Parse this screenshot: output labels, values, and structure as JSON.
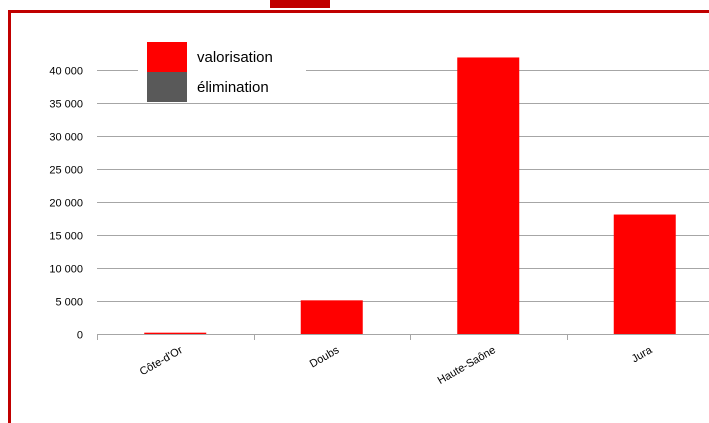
{
  "colors": {
    "frame": "#c00000",
    "title_remnant": "#c00000",
    "gridline": "#a6a6a6",
    "axis": "#a6a6a6"
  },
  "chart_data": {
    "type": "bar",
    "categories": [
      "Côte-d'Or",
      "Doubs",
      "Haute-Saône",
      "Jura"
    ],
    "series": [
      {
        "name": "valorisation",
        "color": "#ff0000",
        "values": [
          200,
          5100,
          41900,
          18100
        ]
      },
      {
        "name": "élimination",
        "color": "#595959",
        "values": [
          0,
          0,
          0,
          0
        ]
      }
    ],
    "title": "",
    "xlabel": "",
    "ylabel": "",
    "ylim": [
      0,
      40000
    ],
    "yticks": [
      0,
      5000,
      10000,
      15000,
      20000,
      25000,
      30000,
      35000,
      40000
    ],
    "ytick_labels": [
      "0",
      "5 000",
      "10 000",
      "15 000",
      "20 000",
      "25 000",
      "30 000",
      "35 000",
      "40 000"
    ],
    "grid": true,
    "legend_position": "top-left"
  }
}
